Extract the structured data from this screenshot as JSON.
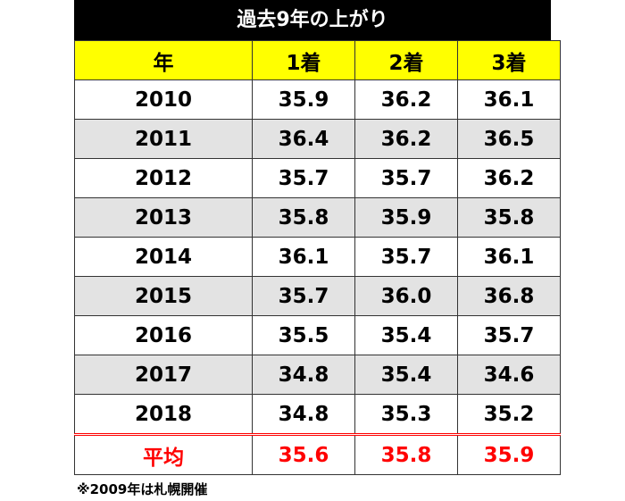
{
  "title": "過去9年の上がり",
  "table": {
    "header": [
      "年",
      "1着",
      "2着",
      "3着"
    ],
    "rows": [
      [
        "2010",
        "35.9",
        "36.2",
        "36.1"
      ],
      [
        "2011",
        "36.4",
        "36.2",
        "36.5"
      ],
      [
        "2012",
        "35.7",
        "35.7",
        "36.2"
      ],
      [
        "2013",
        "35.8",
        "35.9",
        "35.8"
      ],
      [
        "2014",
        "36.1",
        "35.7",
        "36.1"
      ],
      [
        "2015",
        "35.7",
        "36.0",
        "36.8"
      ],
      [
        "2016",
        "35.5",
        "35.4",
        "35.7"
      ],
      [
        "2017",
        "34.8",
        "35.4",
        "34.6"
      ],
      [
        "2018",
        "34.8",
        "35.3",
        "35.2"
      ]
    ],
    "average": [
      "平均",
      "35.6",
      "35.8",
      "35.9"
    ]
  },
  "note": "※2009年は札幌開催"
}
